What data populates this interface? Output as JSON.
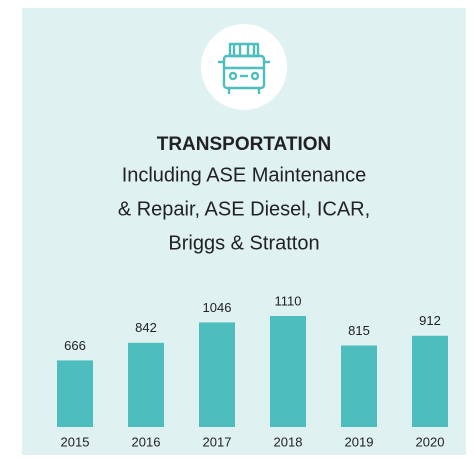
{
  "chart_data": {
    "type": "bar",
    "title": "TRANSPORTATION",
    "subtitle": [
      "Including ASE Maintenance",
      "& Repair, ASE Diesel, ICAR,",
      "Briggs & Stratton"
    ],
    "categories": [
      "2015",
      "2016",
      "2017",
      "2018",
      "2019",
      "2020"
    ],
    "values": [
      666,
      842,
      1046,
      1110,
      815,
      912
    ],
    "color": "#4dbdbd",
    "ylim": [
      0,
      1200
    ]
  }
}
